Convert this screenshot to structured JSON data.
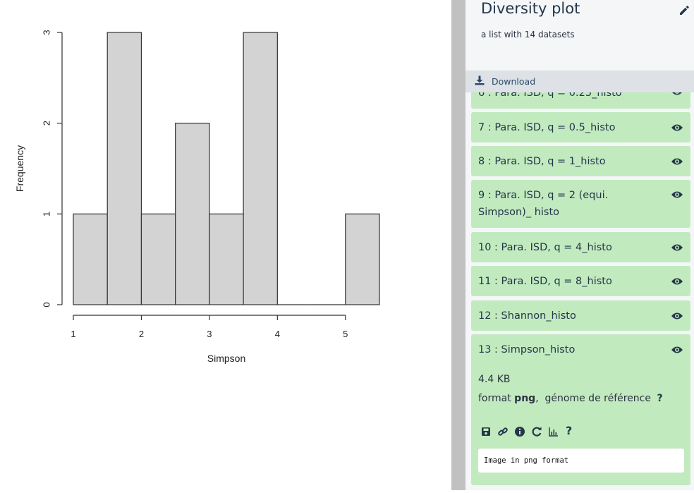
{
  "panel": {
    "title": "Diversity plot",
    "subtitle": "a list with 14 datasets",
    "download_label": "Download",
    "icons": {
      "edit": "pencil-icon",
      "download": "download-icon",
      "view": "eye-icon"
    }
  },
  "datasets": [
    {
      "label": "6 : Para. ISD, q = 0.25_histo"
    },
    {
      "label": "7 : Para. ISD, q = 0.5_histo"
    },
    {
      "label": "8 : Para. ISD, q = 1_histo"
    },
    {
      "label": "9 : Para. ISD, q = 2 (equi. Simpson)_ histo"
    },
    {
      "label": "10 : Para. ISD, q = 4_histo"
    },
    {
      "label": "11 : Para. ISD, q = 8_histo"
    },
    {
      "label": "12 : Shannon_histo"
    },
    {
      "label": "13 : Simpson_histo"
    }
  ],
  "expanded": {
    "size": "4.4 KB",
    "format_prefix": "format",
    "format_value": "png",
    "genome_label": "génome de référence",
    "genome_value": "?",
    "actions": [
      "save-icon",
      "link-icon",
      "info-icon",
      "rerun-icon",
      "visualize-icon",
      "help-icon"
    ],
    "help_glyph": "?",
    "peek": "Image in png format"
  },
  "colors": {
    "dataset_ok": "#c2eabf",
    "panel_bg": "#f4f6f8",
    "download_bar": "#dee2e6",
    "text_dark": "#25364a",
    "bar_fill": "#d3d3d3",
    "divider": "#c1c1c1"
  },
  "chart_data": {
    "type": "bar",
    "xlabel": "Simpson",
    "ylabel": "Frequency",
    "bins": [
      [
        1.0,
        1.5
      ],
      [
        1.5,
        2.0
      ],
      [
        2.0,
        2.5
      ],
      [
        2.5,
        3.0
      ],
      [
        3.0,
        3.5
      ],
      [
        3.5,
        4.0
      ],
      [
        4.0,
        4.5
      ],
      [
        4.5,
        5.0
      ],
      [
        5.0,
        5.5
      ]
    ],
    "values": [
      1,
      3,
      1,
      2,
      1,
      3,
      0,
      0,
      1
    ],
    "xlim": [
      1,
      5.5
    ],
    "ylim": [
      0,
      3
    ],
    "xticks": [
      "1",
      "2",
      "3",
      "4",
      "5"
    ],
    "yticks": [
      "0",
      "1",
      "2",
      "3"
    ],
    "grid": false
  }
}
